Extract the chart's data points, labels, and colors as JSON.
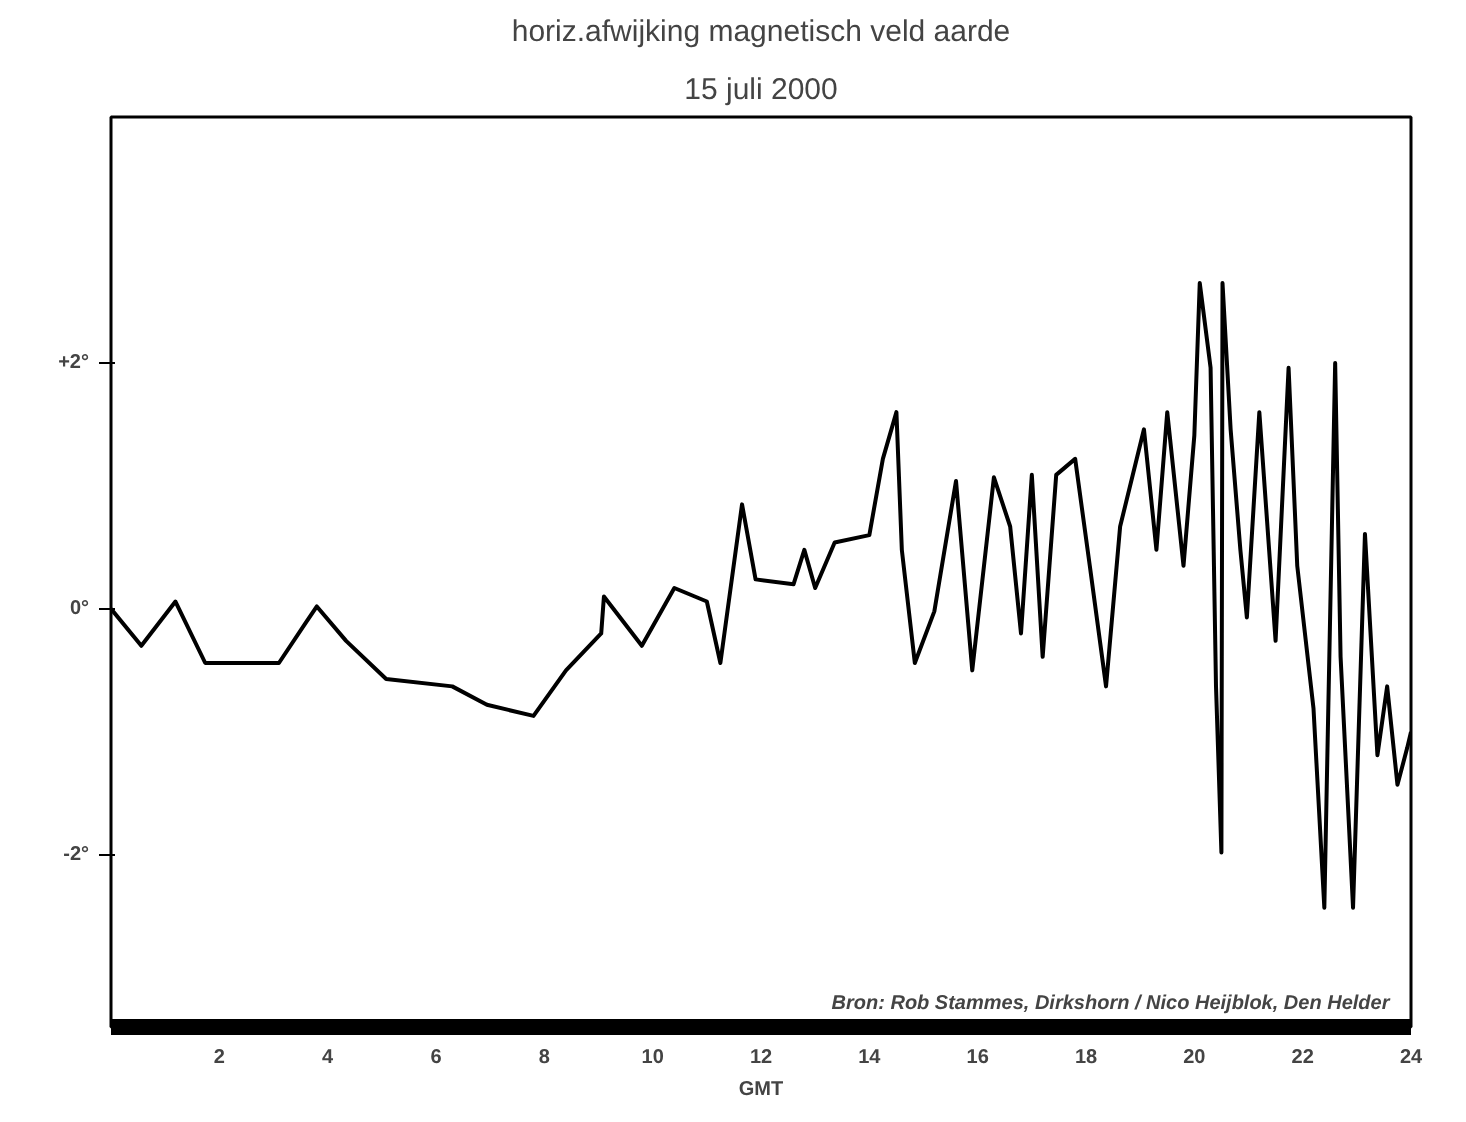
{
  "chart_data": {
    "type": "line",
    "title": "horiz.afwijking magnetisch veld aarde",
    "subtitle": "15 juli 2000",
    "xlabel": "GMT",
    "annotations": [
      "Bron:  Rob Stammes, Dirkshorn / Nico Heijblok, Den Helder"
    ],
    "x": [
      0,
      0.56,
      1.19,
      1.74,
      3.1,
      3.6,
      3.8,
      4.34,
      5.08,
      6.3,
      6.94,
      7.8,
      8.4,
      9.05,
      9.1,
      9.8,
      10.4,
      11.0,
      11.25,
      11.65,
      11.9,
      12.6,
      12.8,
      13.0,
      13.36,
      14.0,
      14.25,
      14.5,
      14.6,
      14.84,
      15.2,
      15.6,
      15.9,
      16.3,
      16.6,
      16.8,
      17.0,
      17.2,
      17.45,
      17.8,
      18.07,
      18.37,
      18.63,
      19.07,
      19.3,
      19.5,
      19.8,
      20.0,
      20.1,
      20.3,
      20.4,
      20.5,
      20.52,
      20.67,
      20.85,
      20.97,
      21.2,
      21.5,
      21.74,
      21.9,
      22.2,
      22.4,
      22.6,
      22.7,
      22.93,
      23.15,
      23.38,
      23.56,
      23.75,
      23.93,
      24
    ],
    "values": [
      0.0,
      -0.3,
      0.06,
      -0.44,
      -0.44,
      -0.11,
      0.02,
      -0.26,
      -0.57,
      -0.63,
      -0.78,
      -0.87,
      -0.5,
      -0.2,
      0.1,
      -0.3,
      0.17,
      0.06,
      -0.44,
      0.85,
      0.24,
      0.2,
      0.48,
      0.17,
      0.54,
      0.6,
      1.22,
      1.6,
      0.48,
      -0.44,
      -0.02,
      1.04,
      -0.5,
      1.07,
      0.67,
      -0.2,
      1.09,
      -0.39,
      1.09,
      1.22,
      0.35,
      -0.63,
      0.67,
      1.46,
      0.48,
      1.6,
      0.35,
      1.41,
      2.65,
      1.96,
      -0.63,
      -1.98,
      2.65,
      1.46,
      0.48,
      -0.07,
      1.6,
      -0.26,
      1.96,
      0.35,
      -0.81,
      -2.43,
      2.0,
      -0.39,
      -2.43,
      0.61,
      -1.19,
      -0.63,
      -1.43,
      -1.13,
      -1.0
    ],
    "color": "#000000",
    "marker": "none",
    "line_style": "solid",
    "grid": false,
    "xlim": [
      0,
      24
    ],
    "xticks": [
      2,
      4,
      6,
      8,
      10,
      12,
      14,
      16,
      18,
      20,
      22,
      24
    ],
    "ylim": [
      -3.4,
      4.0
    ],
    "yticks": [
      {
        "value": 2,
        "label": "+2°"
      },
      {
        "value": 0,
        "label": "0°"
      },
      {
        "value": -2,
        "label": "-2°"
      }
    ]
  }
}
